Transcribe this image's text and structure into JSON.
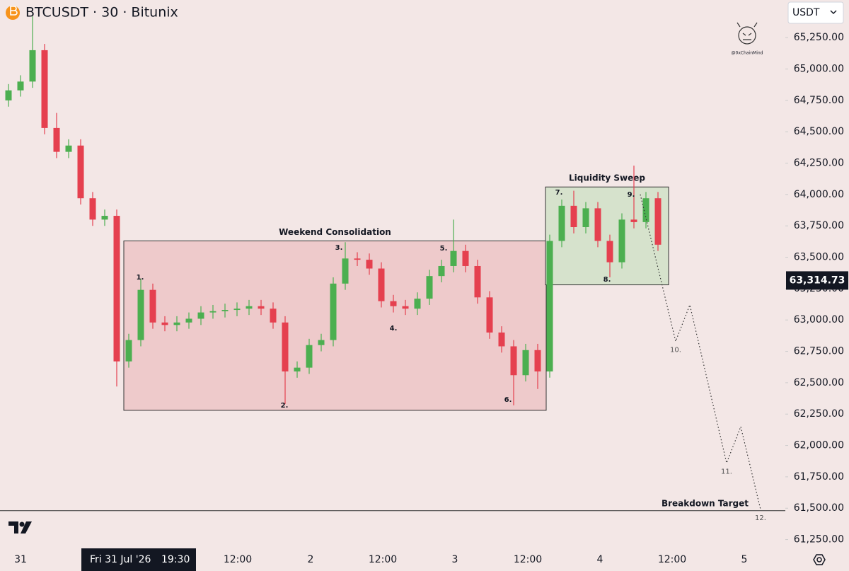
{
  "chart_data": {
    "type": "candlestick",
    "title": "BTCUSDT · 30 · Bitunix",
    "currency": "USDT",
    "watermark": "@0xChainMind",
    "up_color": "#4caf50",
    "down_color": "#e5404f",
    "open": [
      64750,
      64830,
      64900,
      65150,
      64530,
      64340,
      64390,
      63970,
      63800,
      63830,
      62670,
      62840,
      63240,
      62980,
      62960,
      62980,
      63010,
      63060,
      63070,
      63080,
      63090,
      63110,
      63090,
      62980,
      62590,
      62620,
      62800,
      62840,
      63290,
      63490,
      63480,
      63410,
      63150,
      63110,
      63090,
      63170,
      63350,
      63430,
      63550,
      63430,
      63180,
      62900,
      62790,
      62560,
      62760,
      62590,
      63630,
      63910,
      63740,
      63890,
      63630,
      63460,
      63800,
      63780,
      63970
    ],
    "high": [
      64880,
      64950,
      65420,
      65200,
      64650,
      64440,
      64440,
      64020,
      63880,
      63880,
      62890,
      63330,
      63290,
      63030,
      63030,
      63060,
      63110,
      63120,
      63130,
      63140,
      63160,
      63160,
      63140,
      63030,
      62670,
      62850,
      62890,
      63340,
      63620,
      63540,
      63530,
      63460,
      63200,
      63160,
      63220,
      63400,
      63480,
      63800,
      63600,
      63480,
      63230,
      62950,
      62840,
      62810,
      62810,
      63680,
      63960,
      64030,
      63940,
      63940,
      63680,
      63850,
      64230,
      64020,
      64020
    ],
    "low": [
      64700,
      64780,
      64850,
      64480,
      64290,
      64290,
      63920,
      63750,
      63750,
      62470,
      62620,
      62790,
      62930,
      62910,
      62910,
      62930,
      62960,
      63010,
      63020,
      63030,
      63040,
      63040,
      62930,
      62330,
      62540,
      62570,
      62750,
      62790,
      63240,
      63430,
      63360,
      63100,
      63060,
      63040,
      63040,
      63120,
      63300,
      63380,
      63380,
      63130,
      62850,
      62740,
      62320,
      62510,
      62450,
      62540,
      63580,
      63690,
      63690,
      63580,
      63340,
      63410,
      63730,
      63730,
      63550
    ],
    "close": [
      64830,
      64900,
      65150,
      64530,
      64340,
      64390,
      63970,
      63800,
      63830,
      62670,
      62840,
      63240,
      62980,
      62960,
      62980,
      63010,
      63060,
      63070,
      63080,
      63090,
      63110,
      63090,
      62980,
      62590,
      62620,
      62800,
      62840,
      63290,
      63490,
      63480,
      63410,
      63150,
      63110,
      63090,
      63170,
      63350,
      63430,
      63550,
      63430,
      63180,
      62900,
      62790,
      62560,
      62760,
      62590,
      63630,
      63910,
      63740,
      63890,
      63630,
      63460,
      63800,
      63780,
      63970,
      63600
    ],
    "ylim": [
      61180,
      65550
    ],
    "yticks": [
      {
        "value": 65250,
        "label": "65,250.00"
      },
      {
        "value": 65000,
        "label": "65,000.00"
      },
      {
        "value": 64750,
        "label": "64,750.00"
      },
      {
        "value": 64500,
        "label": "64,500.00"
      },
      {
        "value": 64250,
        "label": "64,250.00"
      },
      {
        "value": 64000,
        "label": "64,000.00"
      },
      {
        "value": 63750,
        "label": "63,750.00"
      },
      {
        "value": 63500,
        "label": "63,500.00"
      },
      {
        "value": 63250,
        "label": "63,250.00"
      },
      {
        "value": 63000,
        "label": "63,000.00"
      },
      {
        "value": 62750,
        "label": "62,750.00"
      },
      {
        "value": 62500,
        "label": "62,500.00"
      },
      {
        "value": 62250,
        "label": "62,250.00"
      },
      {
        "value": 62000,
        "label": "62,000.00"
      },
      {
        "value": 61750,
        "label": "61,750.00"
      },
      {
        "value": 61500,
        "label": "61,500.00"
      },
      {
        "value": 61250,
        "label": "61,250.00"
      }
    ],
    "x_labels": [
      "31",
      "12:00",
      "2",
      "12:00",
      "3",
      "12:00",
      "4",
      "12:00",
      "5"
    ],
    "crosshair": {
      "date": "Fri 31 Jul '26",
      "time": "19:30"
    },
    "last_price": {
      "value": 63314.73,
      "label": "63,314.73"
    },
    "zones": [
      {
        "label": "Weekend Consolidation",
        "range": [
          62280,
          63630
        ],
        "color": "#eecacb"
      },
      {
        "label": "Liquidity Sweep",
        "range": [
          63280,
          64060
        ],
        "color": "#d6e2cc"
      }
    ],
    "markers": [
      "1.",
      "2.",
      "3.",
      "4.",
      "5.",
      "6.",
      "7.",
      "8.",
      "9."
    ],
    "projection": {
      "values": [
        64000,
        62830,
        63120,
        61860,
        62150,
        61490
      ],
      "labels": [
        "10.",
        "11.",
        "12."
      ]
    },
    "target": {
      "label": "Breakdown Target",
      "value": 61480
    }
  }
}
